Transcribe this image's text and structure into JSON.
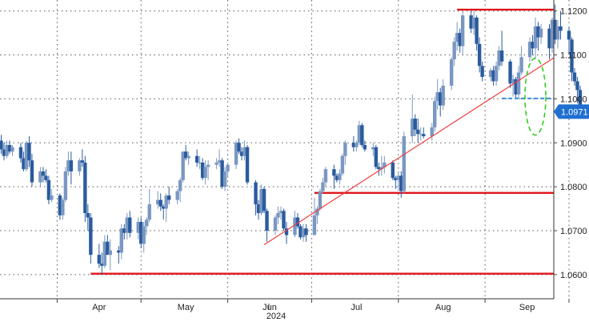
{
  "chart_data": {
    "type": "candlestick",
    "instrument_price_label": "1.0971",
    "year_label": "2024",
    "y_axis": {
      "ylim": [
        1.0545,
        1.1225
      ],
      "position": "right",
      "ticks": [
        "1.1200",
        "1.1100",
        "1.1000",
        "1.0900",
        "1.0800",
        "1.0700",
        "1.0600"
      ]
    },
    "x_axis": {
      "ticks": [
        "Apr",
        "May",
        "Jun",
        "Jul",
        "Aug",
        "Sep"
      ]
    },
    "grid": "dotted",
    "colors": {
      "up": "#7a97c2",
      "down": "#2a5b9e",
      "level": "#e0161b",
      "trend": "#ef3b3b",
      "support_dash": "#3d8de0",
      "ellipse": "#33cc22",
      "price_tag": "#1f6fd1"
    },
    "annotations": {
      "horizontal_levels": [
        1.1203,
        1.0786,
        1.0602
      ],
      "trendline": {
        "from": [
          "2024-06-13",
          1.0668
        ],
        "to": [
          "2024-10-03",
          1.1128
        ]
      },
      "dashed_support": {
        "from": [
          "2024-09-06",
          1.1001
        ],
        "to": [
          "2024-10-03",
          1.1001
        ],
        "value": 1.1001
      },
      "ellipse_note": "highlighted recent breakdown"
    },
    "candles": [
      [
        "2024-03-11",
        1.0905,
        1.0918,
        1.0875,
        1.0885
      ],
      [
        "2024-03-12",
        1.0885,
        1.09,
        1.086,
        1.087
      ],
      [
        "2024-03-13",
        1.087,
        1.0905,
        1.0865,
        1.0895
      ],
      [
        "2024-03-14",
        1.0895,
        1.0905,
        1.0875,
        1.088
      ],
      [
        "2024-03-15",
        1.088,
        1.0895,
        1.087,
        1.089
      ],
      [
        "2024-03-18",
        1.089,
        1.09,
        1.0855,
        1.0865
      ],
      [
        "2024-03-19",
        1.0865,
        1.088,
        1.0835,
        1.084
      ],
      [
        "2024-03-20",
        1.084,
        1.0905,
        1.0835,
        1.09
      ],
      [
        "2024-03-21",
        1.09,
        1.0915,
        1.0845,
        1.086
      ],
      [
        "2024-03-22",
        1.086,
        1.0875,
        1.08,
        1.081
      ],
      [
        "2024-03-25",
        1.081,
        1.0845,
        1.08,
        1.0835
      ],
      [
        "2024-03-26",
        1.0835,
        1.0845,
        1.081,
        1.0825
      ],
      [
        "2024-03-27",
        1.0825,
        1.084,
        1.081,
        1.0815
      ],
      [
        "2024-03-28",
        1.0815,
        1.0825,
        1.076,
        1.077
      ],
      [
        "2024-03-29",
        1.077,
        1.0795,
        1.0765,
        1.078
      ],
      [
        "2024-04-01",
        1.078,
        1.0785,
        1.0725,
        1.0735
      ],
      [
        "2024-04-02",
        1.0735,
        1.0775,
        1.0725,
        1.077
      ],
      [
        "2024-04-03",
        1.077,
        1.0845,
        1.0765,
        1.0835
      ],
      [
        "2024-04-04",
        1.0835,
        1.088,
        1.0825,
        1.086
      ],
      [
        "2024-04-05",
        1.086,
        1.088,
        1.0805,
        1.0835
      ],
      [
        "2024-04-08",
        1.0835,
        1.0865,
        1.0825,
        1.086
      ],
      [
        "2024-04-09",
        1.086,
        1.0885,
        1.0845,
        1.0855
      ],
      [
        "2024-04-10",
        1.0855,
        1.087,
        1.072,
        1.074
      ],
      [
        "2024-04-11",
        1.074,
        1.076,
        1.07,
        1.073
      ],
      [
        "2024-04-12",
        1.073,
        1.074,
        1.0625,
        1.0645
      ],
      [
        "2024-04-15",
        1.0645,
        1.067,
        1.0615,
        1.0625
      ],
      [
        "2024-04-16",
        1.0625,
        1.065,
        1.06,
        1.062
      ],
      [
        "2024-04-17",
        1.062,
        1.069,
        1.0615,
        1.0675
      ],
      [
        "2024-04-18",
        1.0675,
        1.069,
        1.0645,
        1.0645
      ],
      [
        "2024-04-19",
        1.0645,
        1.068,
        1.061,
        1.0655
      ],
      [
        "2024-04-22",
        1.0655,
        1.0665,
        1.0625,
        1.065
      ],
      [
        "2024-04-23",
        1.065,
        1.0715,
        1.0635,
        1.0705
      ],
      [
        "2024-04-24",
        1.0705,
        1.0715,
        1.068,
        1.0695
      ],
      [
        "2024-04-25",
        1.0695,
        1.074,
        1.068,
        1.073
      ],
      [
        "2024-04-26",
        1.073,
        1.0745,
        1.0685,
        1.0695
      ],
      [
        "2024-04-29",
        1.0695,
        1.073,
        1.068,
        1.072
      ],
      [
        "2024-04-30",
        1.072,
        1.073,
        1.066,
        1.067
      ],
      [
        "2024-05-01",
        1.067,
        1.072,
        1.065,
        1.071
      ],
      [
        "2024-05-02",
        1.071,
        1.073,
        1.069,
        1.0725
      ],
      [
        "2024-05-03",
        1.0725,
        1.0795,
        1.072,
        1.076
      ],
      [
        "2024-05-06",
        1.076,
        1.079,
        1.075,
        1.077
      ],
      [
        "2024-05-07",
        1.077,
        1.0785,
        1.0745,
        1.0755
      ],
      [
        "2024-05-08",
        1.0755,
        1.076,
        1.0725,
        1.075
      ],
      [
        "2024-05-09",
        1.075,
        1.0785,
        1.072,
        1.078
      ],
      [
        "2024-05-10",
        1.078,
        1.08,
        1.076,
        1.077
      ],
      [
        "2024-05-13",
        1.077,
        1.0795,
        1.076,
        1.079
      ],
      [
        "2024-05-14",
        1.079,
        1.082,
        1.0765,
        1.0815
      ],
      [
        "2024-05-15",
        1.0815,
        1.088,
        1.081,
        1.088
      ],
      [
        "2024-05-16",
        1.088,
        1.0895,
        1.086,
        1.0865
      ],
      [
        "2024-05-17",
        1.0865,
        1.088,
        1.085,
        1.087
      ],
      [
        "2024-05-20",
        1.087,
        1.0885,
        1.0845,
        1.0855
      ],
      [
        "2024-05-21",
        1.0855,
        1.087,
        1.084,
        1.0855
      ],
      [
        "2024-05-22",
        1.0855,
        1.0865,
        1.0815,
        1.082
      ],
      [
        "2024-05-23",
        1.082,
        1.086,
        1.0805,
        1.0845
      ],
      [
        "2024-05-24",
        1.0845,
        1.086,
        1.0815,
        1.085
      ],
      [
        "2024-05-27",
        1.085,
        1.0865,
        1.084,
        1.0855
      ],
      [
        "2024-05-28",
        1.0855,
        1.0885,
        1.0845,
        1.086
      ],
      [
        "2024-05-29",
        1.086,
        1.0865,
        1.0795,
        1.08
      ],
      [
        "2024-05-30",
        1.08,
        1.0845,
        1.079,
        1.0835
      ],
      [
        "2024-05-31",
        1.0835,
        1.0855,
        1.082,
        1.085
      ],
      [
        "2024-06-03",
        1.085,
        1.0905,
        1.084,
        1.09
      ],
      [
        "2024-06-04",
        1.09,
        1.091,
        1.0875,
        1.088
      ],
      [
        "2024-06-05",
        1.088,
        1.089,
        1.086,
        1.087
      ],
      [
        "2024-06-06",
        1.087,
        1.0905,
        1.086,
        1.089
      ],
      [
        "2024-06-07",
        1.089,
        1.0895,
        1.0805,
        1.081
      ],
      [
        "2024-06-10",
        1.081,
        1.0815,
        1.0735,
        1.076
      ],
      [
        "2024-06-11",
        1.076,
        1.077,
        1.0725,
        1.074
      ],
      [
        "2024-06-12",
        1.074,
        1.0805,
        1.0735,
        1.0795
      ],
      [
        "2024-06-13",
        1.0795,
        1.08,
        1.074,
        1.0745
      ],
      [
        "2024-06-14",
        1.0745,
        1.075,
        1.0675,
        1.07
      ],
      [
        "2024-06-17",
        1.07,
        1.0735,
        1.069,
        1.073
      ],
      [
        "2024-06-18",
        1.073,
        1.0755,
        1.0715,
        1.074
      ],
      [
        "2024-06-19",
        1.074,
        1.0755,
        1.0725,
        1.0745
      ],
      [
        "2024-06-20",
        1.0745,
        1.075,
        1.07,
        1.0705
      ],
      [
        "2024-06-21",
        1.0705,
        1.072,
        1.067,
        1.069
      ],
      [
        "2024-06-24",
        1.069,
        1.0745,
        1.0685,
        1.073
      ],
      [
        "2024-06-25",
        1.073,
        1.074,
        1.0705,
        1.071
      ],
      [
        "2024-06-26",
        1.071,
        1.0715,
        1.068,
        1.0685
      ],
      [
        "2024-06-27",
        1.0685,
        1.0715,
        1.0675,
        1.0705
      ],
      [
        "2024-06-28",
        1.0705,
        1.0715,
        1.0675,
        1.069
      ],
      [
        "2024-07-01",
        1.069,
        1.0775,
        1.069,
        1.0735
      ],
      [
        "2024-07-02",
        1.0735,
        1.0755,
        1.0715,
        1.075
      ],
      [
        "2024-07-03",
        1.075,
        1.0795,
        1.0745,
        1.079
      ],
      [
        "2024-07-04",
        1.079,
        1.082,
        1.0785,
        1.081
      ],
      [
        "2024-07-05",
        1.081,
        1.0845,
        1.08,
        1.084
      ],
      [
        "2024-07-08",
        1.084,
        1.085,
        1.0795,
        1.0825
      ],
      [
        "2024-07-09",
        1.0825,
        1.083,
        1.081,
        1.0815
      ],
      [
        "2024-07-10",
        1.0815,
        1.084,
        1.0805,
        1.083
      ],
      [
        "2024-07-11",
        1.083,
        1.0875,
        1.0825,
        1.087
      ],
      [
        "2024-07-12",
        1.087,
        1.0905,
        1.085,
        1.09
      ],
      [
        "2024-07-15",
        1.09,
        1.0915,
        1.088,
        1.089
      ],
      [
        "2024-07-16",
        1.089,
        1.0905,
        1.088,
        1.09
      ],
      [
        "2024-07-17",
        1.09,
        1.095,
        1.0895,
        1.094
      ],
      [
        "2024-07-18",
        1.094,
        1.0945,
        1.089,
        1.0895
      ],
      [
        "2024-07-19",
        1.0895,
        1.0905,
        1.088,
        1.0885
      ],
      [
        "2024-07-22",
        1.0885,
        1.09,
        1.087,
        1.089
      ],
      [
        "2024-07-23",
        1.089,
        1.0895,
        1.084,
        1.0845
      ],
      [
        "2024-07-24",
        1.0845,
        1.0855,
        1.0825,
        1.084
      ],
      [
        "2024-07-25",
        1.084,
        1.087,
        1.0825,
        1.0845
      ],
      [
        "2024-07-26",
        1.0845,
        1.087,
        1.083,
        1.0855
      ],
      [
        "2024-07-29",
        1.0855,
        1.086,
        1.0815,
        1.082
      ],
      [
        "2024-07-30",
        1.082,
        1.0825,
        1.0795,
        1.0815
      ],
      [
        "2024-07-31",
        1.0815,
        1.0835,
        1.0795,
        1.0825
      ],
      [
        "2024-08-01",
        1.0825,
        1.0835,
        1.0775,
        1.079
      ],
      [
        "2024-08-02",
        1.079,
        1.0925,
        1.0785,
        1.0915
      ],
      [
        "2024-08-05",
        1.0915,
        1.101,
        1.09,
        1.0955
      ],
      [
        "2024-08-06",
        1.0955,
        1.0965,
        1.0915,
        1.093
      ],
      [
        "2024-08-07",
        1.093,
        1.0955,
        1.09,
        1.092
      ],
      [
        "2024-08-08",
        1.092,
        1.0935,
        1.0905,
        1.092
      ],
      [
        "2024-08-09",
        1.092,
        1.0935,
        1.091,
        1.0915
      ],
      [
        "2024-08-12",
        1.0915,
        1.0945,
        1.0905,
        1.0935
      ],
      [
        "2024-08-13",
        1.0935,
        1.1005,
        1.0925,
        1.0995
      ],
      [
        "2024-08-14",
        1.0995,
        1.1045,
        1.0975,
        1.1015
      ],
      [
        "2024-08-15",
        1.1015,
        1.1025,
        1.096,
        1.0985
      ],
      [
        "2024-08-16",
        1.0985,
        1.1045,
        1.0975,
        1.103
      ],
      [
        "2024-08-19",
        1.103,
        1.1095,
        1.102,
        1.109
      ],
      [
        "2024-08-20",
        1.109,
        1.114,
        1.1075,
        1.113
      ],
      [
        "2024-08-21",
        1.113,
        1.1175,
        1.111,
        1.115
      ],
      [
        "2024-08-22",
        1.115,
        1.116,
        1.1105,
        1.112
      ],
      [
        "2024-08-23",
        1.112,
        1.12,
        1.11,
        1.119
      ],
      [
        "2024-08-26",
        1.119,
        1.12,
        1.115,
        1.116
      ],
      [
        "2024-08-27",
        1.116,
        1.12,
        1.1145,
        1.1185
      ],
      [
        "2024-08-28",
        1.1185,
        1.119,
        1.111,
        1.1125
      ],
      [
        "2024-08-29",
        1.1125,
        1.114,
        1.106,
        1.1075
      ],
      [
        "2024-08-30",
        1.1075,
        1.1085,
        1.104,
        1.105
      ],
      [
        "2024-09-02",
        1.105,
        1.107,
        1.104,
        1.1065
      ],
      [
        "2024-09-03",
        1.1065,
        1.1075,
        1.103,
        1.104
      ],
      [
        "2024-09-04",
        1.104,
        1.1085,
        1.103,
        1.1075
      ],
      [
        "2024-09-05",
        1.1075,
        1.112,
        1.1065,
        1.111
      ],
      [
        "2024-09-06",
        1.111,
        1.1155,
        1.1075,
        1.1085
      ],
      [
        "2024-09-09",
        1.1085,
        1.109,
        1.1025,
        1.1035
      ],
      [
        "2024-09-10",
        1.1035,
        1.1055,
        1.1005,
        1.1045
      ],
      [
        "2024-09-11",
        1.1045,
        1.105,
        1.1,
        1.101
      ],
      [
        "2024-09-12",
        1.101,
        1.1075,
        1.1,
        1.106
      ],
      [
        "2024-09-13",
        1.106,
        1.112,
        1.1055,
        1.1095
      ],
      [
        "2024-09-16",
        1.1095,
        1.114,
        1.1085,
        1.113
      ],
      [
        "2024-09-17",
        1.113,
        1.1145,
        1.11,
        1.1115
      ],
      [
        "2024-09-18",
        1.1115,
        1.1185,
        1.109,
        1.1165
      ],
      [
        "2024-09-19",
        1.1165,
        1.1175,
        1.111,
        1.114
      ],
      [
        "2024-09-20",
        1.114,
        1.117,
        1.1125,
        1.116
      ],
      [
        "2024-09-23",
        1.116,
        1.117,
        1.109,
        1.1115
      ],
      [
        "2024-09-24",
        1.1115,
        1.1185,
        1.1105,
        1.118
      ],
      [
        "2024-09-25",
        1.118,
        1.1215,
        1.1125,
        1.1135
      ],
      [
        "2024-09-26",
        1.1135,
        1.118,
        1.1115,
        1.1165
      ],
      [
        "2024-09-27",
        1.1165,
        1.12,
        1.1135,
        1.1155
      ],
      [
        "2024-09-30",
        1.1155,
        1.1165,
        1.11,
        1.1135
      ],
      [
        "2024-10-01",
        1.1135,
        1.114,
        1.104,
        1.106
      ],
      [
        "2024-10-02",
        1.106,
        1.107,
        1.103,
        1.104
      ],
      [
        "2024-10-03",
        1.104,
        1.105,
        1.099,
        1.102
      ],
      [
        "2024-10-04",
        1.102,
        1.103,
        1.096,
        1.0971
      ]
    ]
  }
}
